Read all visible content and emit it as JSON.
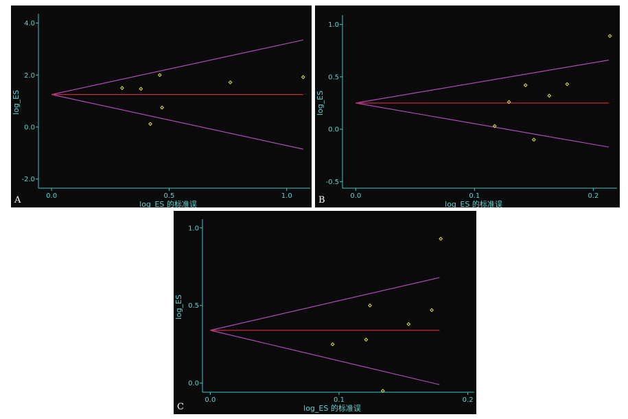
{
  "colors": {
    "background": "#0a0a0a",
    "axis": "#3cc8c8",
    "text": "#5fd4d4",
    "funnel": "#b04ab8",
    "pooled": "#c8283c",
    "points": "#e6e64a",
    "letter": "#ffffff"
  },
  "chart_data": [
    {
      "panel": "A",
      "type": "scatter",
      "subtype": "funnel-plot",
      "xlabel": "log_ES 的标准误",
      "ylabel": "log_ES",
      "xlim": [
        -0.05,
        1.1
      ],
      "ylim": [
        -2.3,
        4.2
      ],
      "xticks": [
        {
          "v": 0.0,
          "label": "0.0"
        },
        {
          "v": 0.5,
          "label": "0.5"
        },
        {
          "v": 1.0,
          "label": "1.0"
        }
      ],
      "yticks": [
        {
          "v": 4.0,
          "label": "4.0"
        },
        {
          "v": 2.0,
          "label": "2.0"
        },
        {
          "v": 0.0,
          "label": "0.0"
        },
        {
          "v": -2.0,
          "label": "-2.0"
        }
      ],
      "pooled": 1.25,
      "funnel": {
        "apex_x": 0.0,
        "end_x": 1.07,
        "upper_end": 3.35,
        "lower_end": -0.85
      },
      "points": [
        {
          "x": 0.3,
          "y": 1.5
        },
        {
          "x": 0.38,
          "y": 1.47
        },
        {
          "x": 0.42,
          "y": 0.12
        },
        {
          "x": 0.46,
          "y": 2.0
        },
        {
          "x": 0.47,
          "y": 0.75
        },
        {
          "x": 0.76,
          "y": 1.72
        },
        {
          "x": 1.07,
          "y": 1.92
        }
      ]
    },
    {
      "panel": "B",
      "type": "scatter",
      "subtype": "funnel-plot",
      "xlabel": "log_ES 的标准误",
      "ylabel": "log_ES",
      "xlim": [
        -0.01,
        0.22
      ],
      "ylim": [
        -0.55,
        1.05
      ],
      "xticks": [
        {
          "v": 0.0,
          "label": "0.0"
        },
        {
          "v": 0.1,
          "label": "0.1"
        },
        {
          "v": 0.2,
          "label": "0.2"
        }
      ],
      "yticks": [
        {
          "v": 1.0,
          "label": "1.0"
        },
        {
          "v": 0.5,
          "label": "0.5"
        },
        {
          "v": 0.0,
          "label": "0.0"
        },
        {
          "v": -0.5,
          "label": "-0.5"
        }
      ],
      "pooled": 0.25,
      "funnel": {
        "apex_x": 0.0,
        "end_x": 0.213,
        "upper_end": 0.66,
        "lower_end": -0.17
      },
      "points": [
        {
          "x": 0.117,
          "y": 0.03
        },
        {
          "x": 0.129,
          "y": 0.26
        },
        {
          "x": 0.143,
          "y": 0.42
        },
        {
          "x": 0.15,
          "y": -0.1
        },
        {
          "x": 0.163,
          "y": 0.32
        },
        {
          "x": 0.178,
          "y": 0.43
        },
        {
          "x": 0.214,
          "y": 0.89
        }
      ]
    },
    {
      "panel": "C",
      "type": "scatter",
      "subtype": "funnel-plot",
      "xlabel": "log_ES 的标准误",
      "ylabel": "log_ES",
      "xlim": [
        -0.005,
        0.205
      ],
      "ylim": [
        -0.05,
        1.03
      ],
      "xticks": [
        {
          "v": 0.0,
          "label": "0.0"
        },
        {
          "v": 0.1,
          "label": "0.1"
        },
        {
          "v": 0.2,
          "label": "0.2"
        }
      ],
      "yticks": [
        {
          "v": 1.0,
          "label": "1.0"
        },
        {
          "v": 0.5,
          "label": "0.5"
        },
        {
          "v": 0.0,
          "label": "0.0"
        }
      ],
      "pooled": 0.34,
      "funnel": {
        "apex_x": 0.0,
        "end_x": 0.178,
        "upper_end": 0.68,
        "lower_end": -0.01
      },
      "points": [
        {
          "x": 0.095,
          "y": 0.25
        },
        {
          "x": 0.121,
          "y": 0.28
        },
        {
          "x": 0.124,
          "y": 0.5
        },
        {
          "x": 0.134,
          "y": -0.05
        },
        {
          "x": 0.154,
          "y": 0.38
        },
        {
          "x": 0.172,
          "y": 0.47
        },
        {
          "x": 0.179,
          "y": 0.93
        }
      ]
    }
  ]
}
